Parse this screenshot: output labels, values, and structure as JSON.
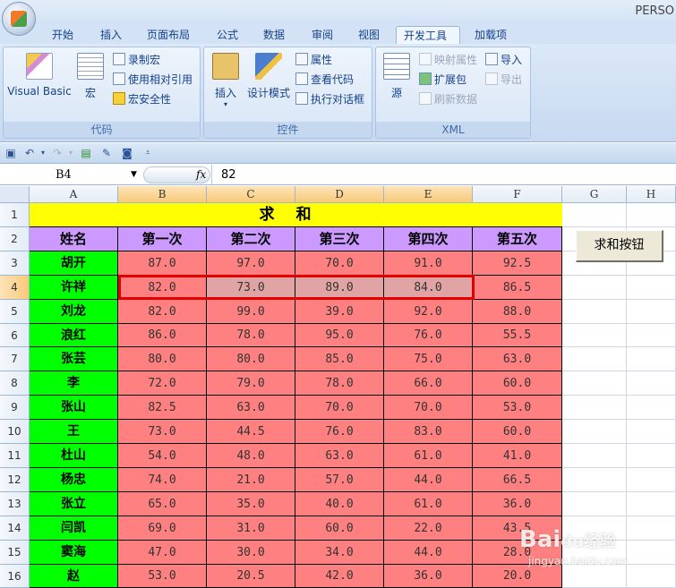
{
  "app_title": "PERSO",
  "tabs": [
    "开始",
    "插入",
    "页面布局",
    "公式",
    "数据",
    "审阅",
    "视图",
    "开发工具",
    "加载项"
  ],
  "active_tab": "开发工具",
  "ribbon": {
    "code": {
      "label": "代码",
      "visual_basic": "Visual Basic",
      "macro": "宏",
      "record_macro": "录制宏",
      "relative_ref": "使用相对引用",
      "macro_security": "宏安全性"
    },
    "controls": {
      "label": "控件",
      "insert": "插入",
      "design_mode": "设计模式",
      "properties": "属性",
      "view_code": "查看代码",
      "run_dialog": "执行对话框"
    },
    "xml": {
      "label": "XML",
      "source": "源",
      "map_properties": "映射属性",
      "expansion_packs": "扩展包",
      "refresh_data": "刷新数据",
      "import": "导入",
      "export": "导出"
    }
  },
  "formula_bar": {
    "name_box": "B4",
    "fx": "fx",
    "value": "82"
  },
  "columns": [
    "A",
    "B",
    "C",
    "D",
    "E",
    "F",
    "G",
    "H"
  ],
  "rows": [
    "1",
    "2",
    "3",
    "4",
    "5",
    "6",
    "7",
    "8",
    "9",
    "10",
    "11",
    "12",
    "13",
    "14",
    "15",
    "16"
  ],
  "sheet": {
    "title": "求和",
    "headers": [
      "姓名",
      "第一次",
      "第二次",
      "第三次",
      "第四次",
      "第五次"
    ],
    "data": [
      [
        "胡开",
        "87.0",
        "97.0",
        "70.0",
        "91.0",
        "92.5"
      ],
      [
        "许祥",
        "82.0",
        "73.0",
        "89.0",
        "84.0",
        "86.5"
      ],
      [
        "刘龙",
        "82.0",
        "99.0",
        "39.0",
        "92.0",
        "88.0"
      ],
      [
        "浪红",
        "86.0",
        "78.0",
        "95.0",
        "76.0",
        "55.5"
      ],
      [
        "张芸",
        "80.0",
        "80.0",
        "85.0",
        "75.0",
        "63.0"
      ],
      [
        "李",
        "72.0",
        "79.0",
        "78.0",
        "66.0",
        "60.0"
      ],
      [
        "张山",
        "82.5",
        "63.0",
        "70.0",
        "70.0",
        "53.0"
      ],
      [
        "王",
        "73.0",
        "44.5",
        "76.0",
        "83.0",
        "60.0"
      ],
      [
        "杜山",
        "54.0",
        "48.0",
        "63.0",
        "61.0",
        "41.0"
      ],
      [
        "杨忠",
        "74.0",
        "21.0",
        "57.0",
        "44.0",
        "66.5"
      ],
      [
        "张立",
        "65.0",
        "35.0",
        "40.0",
        "61.0",
        "36.0"
      ],
      [
        "闫凯",
        "69.0",
        "31.0",
        "60.0",
        "22.0",
        "43.5"
      ],
      [
        "窦海",
        "47.0",
        "30.0",
        "34.0",
        "44.0",
        "28.0"
      ],
      [
        "赵",
        "53.0",
        "20.5",
        "42.0",
        "36.0",
        "20.0"
      ]
    ]
  },
  "sum_button": "求和按钮",
  "watermark": {
    "brand": "Baidu经验",
    "url": "jingyan.baidu.com"
  },
  "colors": {
    "title_bg": "#ffff00",
    "header_bg": "#cc99ff",
    "name_bg": "#00ff00",
    "score_bg": "#ff8080",
    "selection_border": "#e00000"
  }
}
